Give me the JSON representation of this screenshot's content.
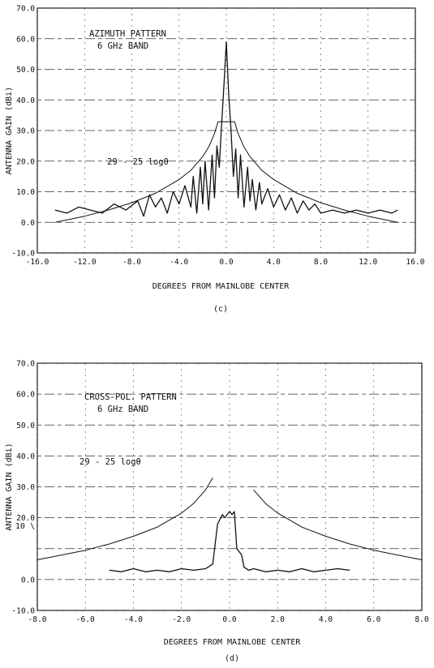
{
  "chart_data": [
    {
      "type": "line",
      "panel_label": "(c)",
      "annotation_lines": [
        "AZIMUTH PATTERN",
        "6 GHz BAND"
      ],
      "envelope_label": "29 - 25 logθ",
      "xlabel": "DEGREES FROM MAINLOBE CENTER",
      "ylabel": "ANTENNA GAIN (dBi)",
      "xlim": [
        -16,
        16
      ],
      "ylim": [
        -10,
        70
      ],
      "xticks": [
        -16,
        -12,
        -8,
        -4,
        0,
        4,
        8,
        12,
        16
      ],
      "xtick_labels": [
        "-16.0",
        "-12.0",
        "-8.0",
        "-4.0",
        "0.0",
        "4.0",
        "8.0",
        "12.0",
        "16.0"
      ],
      "yticks": [
        -10,
        0,
        10,
        20,
        30,
        40,
        50,
        60,
        70
      ],
      "ytick_labels": [
        "-10.0",
        "0.0",
        "10.0",
        "20.0",
        "30.0",
        "40.0",
        "50.0",
        "60.0",
        "70.0"
      ],
      "grid": true,
      "series": [
        {
          "x": [
            -14.5,
            -13.5,
            -12.5,
            -11.5,
            -10.5,
            -9.5,
            -8.5,
            -7.5,
            -7,
            -6.5,
            -6,
            -5.5,
            -5,
            -4.5,
            -4,
            -3.5,
            -3,
            -2.8,
            -2.5,
            -2.2,
            -2,
            -1.8,
            -1.5,
            -1.2,
            -1,
            -0.8,
            -0.6,
            -0.4,
            -0.2,
            0,
            0.2,
            0.4,
            0.6,
            0.8,
            1,
            1.2,
            1.5,
            1.8,
            2,
            2.2,
            2.5,
            2.8,
            3,
            3.5,
            4,
            4.5,
            5,
            5.5,
            6,
            6.5,
            7,
            7.5,
            8,
            9,
            10,
            11,
            12,
            13,
            14,
            14.5
          ],
          "y": [
            4,
            3,
            5,
            4,
            3,
            6,
            4,
            7,
            2,
            9,
            5,
            8,
            3,
            10,
            6,
            12,
            5,
            15,
            3,
            18,
            6,
            20,
            4,
            22,
            8,
            25,
            18,
            32,
            45,
            59,
            42,
            30,
            15,
            24,
            8,
            22,
            5,
            18,
            7,
            14,
            4,
            13,
            6,
            11,
            5,
            9,
            4,
            8,
            3,
            7,
            4,
            6,
            3,
            4,
            3,
            4,
            3,
            4,
            3,
            4
          ]
        },
        {
          "name": "29 - 25 logθ",
          "x": [
            -14.5,
            -12,
            -10,
            -8,
            -6,
            -4,
            -3,
            -2,
            -1.5,
            -1,
            -0.7,
            0.7,
            1,
            1.5,
            2,
            3,
            4,
            6,
            8,
            10,
            12,
            14.5
          ],
          "y": [
            0,
            2,
            4,
            6.4,
            9.5,
            14,
            17,
            21.5,
            24.6,
            29,
            32.9,
            32.9,
            29,
            24.6,
            21.5,
            17,
            14,
            9.5,
            6.4,
            4,
            2,
            0
          ]
        }
      ]
    },
    {
      "type": "line",
      "panel_label": "(d)",
      "annotation_lines": [
        "CROSS-POL. PATTERN",
        "6 GHz BAND"
      ],
      "envelope_label": "29 - 25 logθ",
      "xlabel": "DEGREES FROM MAINLOBE CENTER",
      "ylabel": "ANTENNA GAIN (dBi)",
      "xlim": [
        -8,
        8
      ],
      "ylim": [
        -10,
        70
      ],
      "xticks": [
        -8,
        -6,
        -4,
        -2,
        0,
        2,
        4,
        6,
        8
      ],
      "xtick_labels": [
        "-8.0",
        "-6.0",
        "-4.0",
        "-2.0",
        "0.0",
        "2.0",
        "4.0",
        "6.0",
        "8.0"
      ],
      "yticks": [
        -10,
        0,
        10,
        20,
        30,
        40,
        50,
        60,
        70
      ],
      "ytick_labels": [
        "-10.0",
        "0.0",
        "",
        "20.0",
        "30.0",
        "40.0",
        "50.0",
        "60.0",
        "70.0"
      ],
      "ytick_stray_label": "10 \\",
      "grid": true,
      "series": [
        {
          "x": [
            -5,
            -4.5,
            -4,
            -3.5,
            -3,
            -2.5,
            -2,
            -1.5,
            -1,
            -0.7,
            -0.5,
            -0.3,
            -0.2,
            0,
            0.1,
            0.2,
            0.3,
            0.5,
            0.6,
            0.8,
            1,
            1.5,
            2,
            2.5,
            3,
            3.5,
            4,
            4.5,
            5
          ],
          "y": [
            3,
            2.5,
            3.5,
            2.5,
            3,
            2.5,
            3.5,
            3,
            3.5,
            5,
            18,
            21,
            20,
            22,
            21,
            22,
            10,
            8,
            4,
            3,
            3.5,
            2.5,
            3,
            2.5,
            3.5,
            2.5,
            3,
            3.5,
            3
          ]
        },
        {
          "name": "29 - 25 logθ",
          "x": [
            -8,
            -7,
            -6,
            -5,
            -4,
            -3,
            -2,
            -1.5,
            -1,
            -0.7
          ],
          "y": [
            6.4,
            7.9,
            9.5,
            11.5,
            14,
            17,
            21.5,
            24.6,
            29,
            32.9
          ]
        },
        {
          "name": "29 - 25 logθ",
          "x": [
            1,
            1.5,
            2,
            3,
            4,
            5,
            6,
            7,
            8
          ],
          "y": [
            29,
            24.6,
            21.5,
            17,
            14,
            11.5,
            9.5,
            7.9,
            6.4
          ]
        }
      ]
    }
  ]
}
